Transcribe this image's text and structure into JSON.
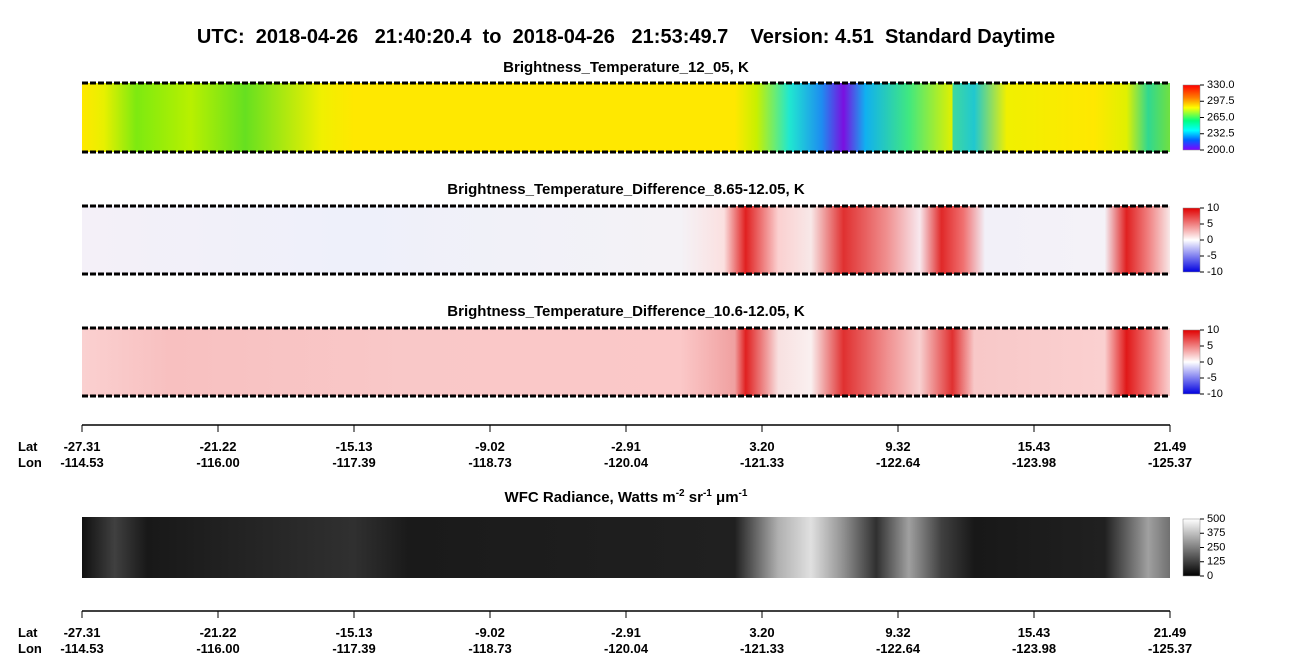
{
  "header": {
    "title": "UTC:  2018-04-26   21:40:20.4  to  2018-04-26   21:53:49.7    Version: 4.51  Standard Daytime"
  },
  "panels": [
    {
      "title": "Brightness_Temperature_12_05, K",
      "colorbar": [
        "330.0",
        "297.5",
        "265.0",
        "232.5",
        "200.0"
      ]
    },
    {
      "title": "Brightness_Temperature_Difference_8.65-12.05, K",
      "colorbar": [
        "10",
        "5",
        "0",
        "-5",
        "-10"
      ]
    },
    {
      "title": "Brightness_Temperature_Difference_10.6-12.05, K",
      "colorbar": [
        "10",
        "5",
        "0",
        "-5",
        "-10"
      ]
    },
    {
      "title_parts": [
        "WFC Radiance, Watts m",
        "-2",
        " sr",
        "-1",
        " μm",
        "-1"
      ],
      "colorbar": [
        "500",
        "375",
        "250",
        "125",
        "0"
      ]
    }
  ],
  "axis": {
    "lat_label": "Lat",
    "lon_label": "Lon",
    "lat": [
      "-27.31",
      "-21.22",
      "-15.13",
      "-9.02",
      "-2.91",
      "3.20",
      "9.32",
      "15.43",
      "21.49"
    ],
    "lon": [
      "-114.53",
      "-116.00",
      "-117.39",
      "-118.73",
      "-120.04",
      "-121.33",
      "-122.64",
      "-123.98",
      "-125.37"
    ]
  }
}
